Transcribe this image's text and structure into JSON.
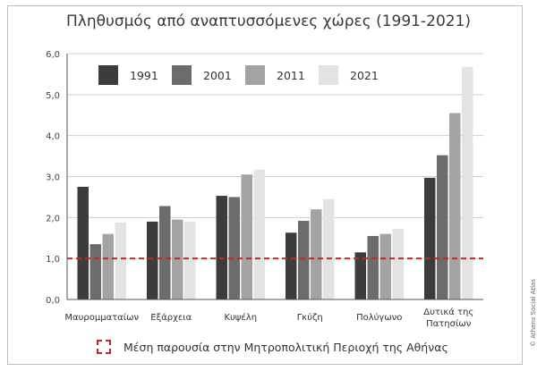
{
  "credit": "© Athens Social Atlas",
  "chart_data": {
    "type": "bar",
    "title": "Πληθυσμός από αναπτυσσόμενες χώρες (1991-2021)",
    "categories": [
      "Μαυρομματαίων",
      "Εξάρχεια",
      "Κυψέλη",
      "Γκύζη",
      "Πολύγωνο",
      "Δυτικά της Πατησίων"
    ],
    "series": [
      {
        "name": "1991",
        "color": "#3c3c3c",
        "values": [
          2.75,
          1.9,
          2.53,
          1.63,
          1.15,
          2.97
        ]
      },
      {
        "name": "2001",
        "color": "#6c6c6c",
        "values": [
          1.35,
          2.28,
          2.5,
          1.92,
          1.55,
          3.52
        ]
      },
      {
        "name": "2011",
        "color": "#a3a3a3",
        "values": [
          1.6,
          1.95,
          3.05,
          2.2,
          1.6,
          4.55
        ]
      },
      {
        "name": "2021",
        "color": "#e3e3e3",
        "values": [
          1.88,
          1.9,
          3.17,
          2.45,
          1.72,
          5.68
        ]
      }
    ],
    "ylim": [
      0,
      6
    ],
    "yticks": [
      "0,0",
      "1,0",
      "2,0",
      "3,0",
      "4,0",
      "5,0",
      "6,0"
    ],
    "grid": true,
    "legend_position": "top-left",
    "reference_line": {
      "value": 1.0,
      "label": "Μέση παρουσία στην Μητροπολιτική Περιοχή της Αθήνας",
      "color": "#c0282d"
    }
  }
}
